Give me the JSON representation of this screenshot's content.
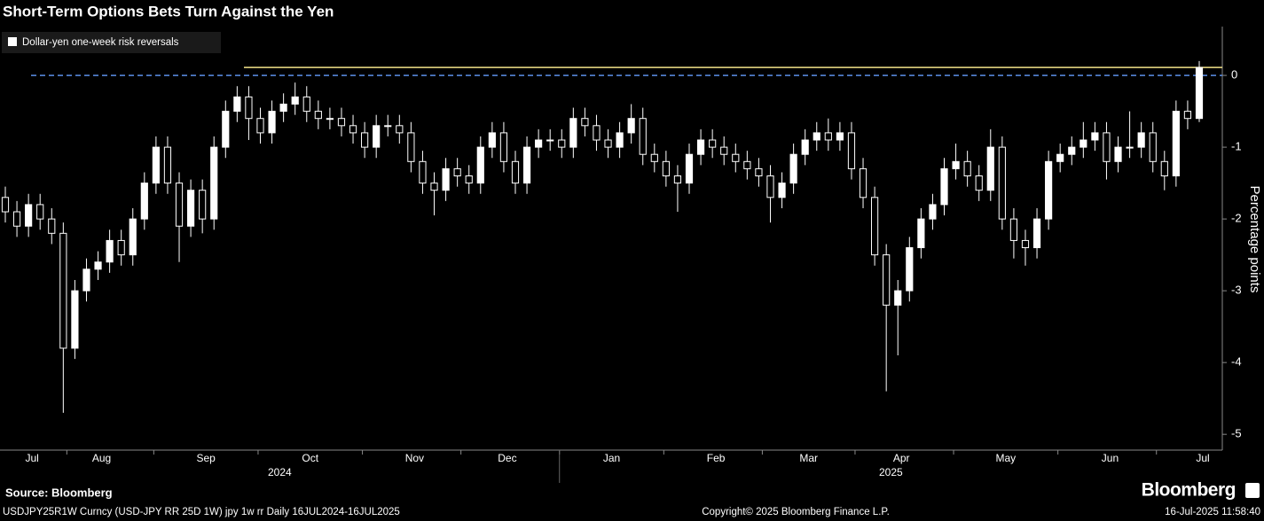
{
  "chart_data": {
    "type": "candlestick",
    "title": "Short-Term Options Bets Turn Against the Yen",
    "y_axis_label": "Percentage points",
    "ylim": [
      -5.22,
      0.68
    ],
    "yticks": [
      0,
      -1,
      -2,
      -3,
      -4,
      -5
    ],
    "categories": [
      null,
      null,
      "Jul",
      null,
      null,
      null,
      null,
      null,
      "Aug",
      null,
      null,
      null,
      null,
      null,
      null,
      null,
      null,
      "Sep",
      null,
      null,
      null,
      null,
      null,
      null,
      null,
      null,
      "Oct",
      null,
      null,
      null,
      null,
      null,
      null,
      null,
      null,
      "Nov",
      null,
      null,
      null,
      null,
      null,
      null,
      null,
      "Dec",
      null,
      null,
      null,
      null,
      null,
      null,
      null,
      null,
      "Jan",
      null,
      null,
      null,
      null,
      null,
      null,
      null,
      null,
      "Feb",
      null,
      null,
      null,
      null,
      null,
      null,
      null,
      "Mar",
      null,
      null,
      null,
      null,
      null,
      null,
      null,
      "Apr",
      null,
      null,
      null,
      null,
      null,
      null,
      null,
      null,
      "May",
      null,
      null,
      null,
      null,
      null,
      null,
      null,
      null,
      "Jun",
      null,
      null,
      null,
      null,
      null,
      null,
      null,
      "Jul"
    ],
    "years": [
      "2024",
      "2025"
    ],
    "series": [
      {
        "name": "Dollar-yen one-week risk reversals",
        "color": "#ffffff",
        "open": [
          -1.7,
          -1.9,
          -2.1,
          -1.8,
          -2.0,
          -2.2,
          -3.8,
          -3.0,
          -2.7,
          -2.6,
          -2.3,
          -2.5,
          -2.0,
          -1.5,
          -1.0,
          -1.5,
          -2.1,
          -1.6,
          -2.0,
          -1.0,
          -0.5,
          -0.3,
          -0.6,
          -0.8,
          -0.5,
          -0.4,
          -0.3,
          -0.5,
          -0.6,
          -0.6,
          -0.7,
          -0.8,
          -1.0,
          -0.7,
          -0.7,
          -0.8,
          -1.2,
          -1.5,
          -1.6,
          -1.3,
          -1.4,
          -1.5,
          -1.0,
          -0.8,
          -1.2,
          -1.5,
          -1.0,
          -0.9,
          -0.9,
          -1.0,
          -0.6,
          -0.7,
          -0.9,
          -1.0,
          -0.8,
          -0.6,
          -1.1,
          -1.2,
          -1.4,
          -1.5,
          -1.1,
          -0.9,
          -1.0,
          -1.1,
          -1.2,
          -1.3,
          -1.4,
          -1.7,
          -1.5,
          -1.1,
          -0.9,
          -0.8,
          -0.9,
          -0.8,
          -1.3,
          -1.7,
          -2.5,
          -3.2,
          -3.0,
          -2.4,
          -2.0,
          -1.8,
          -1.3,
          -1.2,
          -1.4,
          -1.6,
          -1.0,
          -2.0,
          -2.3,
          -2.4,
          -2.0,
          -1.2,
          -1.1,
          -1.0,
          -0.9,
          -0.8,
          -1.2,
          -1.0,
          -1.0,
          -0.8,
          -1.2,
          -1.4,
          -0.5,
          -0.6
        ],
        "high": [
          -1.55,
          -1.75,
          -1.65,
          -1.65,
          -1.85,
          -2.05,
          -2.85,
          -2.55,
          -2.45,
          -2.15,
          -2.15,
          -1.85,
          -1.35,
          -0.85,
          -0.85,
          -1.35,
          -1.45,
          -1.45,
          -0.85,
          -0.35,
          -0.15,
          -0.15,
          -0.45,
          -0.35,
          -0.25,
          -0.1,
          -0.15,
          -0.35,
          -0.45,
          -0.45,
          -0.55,
          -0.65,
          -0.55,
          -0.55,
          -0.55,
          -0.65,
          -1.05,
          -1.35,
          -1.15,
          -1.15,
          -1.25,
          -0.85,
          -0.65,
          -0.65,
          -1.05,
          -0.85,
          -0.75,
          -0.75,
          -0.75,
          -0.45,
          -0.45,
          -0.55,
          -0.75,
          -0.65,
          -0.4,
          -0.45,
          -0.95,
          -1.05,
          -1.25,
          -0.95,
          -0.75,
          -0.75,
          -0.85,
          -0.95,
          -1.05,
          -1.15,
          -1.25,
          -1.35,
          -0.95,
          -0.75,
          -0.65,
          -0.6,
          -0.65,
          -0.65,
          -1.15,
          -1.55,
          -2.35,
          -2.85,
          -2.25,
          -1.85,
          -1.65,
          -1.15,
          -0.95,
          -1.05,
          -1.25,
          -0.75,
          -0.85,
          -1.85,
          -2.15,
          -1.85,
          -1.05,
          -0.95,
          -0.85,
          -0.65,
          -0.65,
          -0.65,
          -0.85,
          -0.5,
          -0.65,
          -0.65,
          -1.05,
          -0.35,
          -0.35,
          0.2
        ],
        "low": [
          -2.05,
          -2.25,
          -2.25,
          -2.15,
          -2.35,
          -4.7,
          -3.95,
          -3.15,
          -2.85,
          -2.75,
          -2.65,
          -2.65,
          -2.15,
          -1.65,
          -1.65,
          -2.6,
          -2.25,
          -2.2,
          -2.15,
          -1.15,
          -0.65,
          -0.9,
          -0.95,
          -0.95,
          -0.65,
          -0.55,
          -0.65,
          -0.75,
          -0.75,
          -0.85,
          -0.95,
          -1.15,
          -1.15,
          -0.85,
          -0.95,
          -1.35,
          -1.65,
          -1.95,
          -1.75,
          -1.55,
          -1.65,
          -1.65,
          -1.15,
          -1.35,
          -1.65,
          -1.65,
          -1.15,
          -1.05,
          -1.15,
          -1.15,
          -0.85,
          -1.05,
          -1.15,
          -1.15,
          -0.95,
          -1.25,
          -1.35,
          -1.55,
          -1.9,
          -1.65,
          -1.25,
          -1.15,
          -1.25,
          -1.35,
          -1.45,
          -1.55,
          -2.05,
          -1.85,
          -1.65,
          -1.25,
          -1.05,
          -1.05,
          -1.05,
          -1.45,
          -1.85,
          -2.65,
          -4.4,
          -3.9,
          -3.15,
          -2.55,
          -2.15,
          -1.95,
          -1.45,
          -1.55,
          -1.75,
          -1.75,
          -2.15,
          -2.55,
          -2.65,
          -2.55,
          -2.15,
          -1.35,
          -1.25,
          -1.15,
          -1.05,
          -1.45,
          -1.35,
          -1.15,
          -1.15,
          -1.35,
          -1.6,
          -1.55,
          -0.75,
          -0.65
        ],
        "close": [
          -1.9,
          -2.1,
          -1.8,
          -2.0,
          -2.2,
          -3.8,
          -3.0,
          -2.7,
          -2.6,
          -2.3,
          -2.5,
          -2.0,
          -1.5,
          -1.0,
          -1.5,
          -2.1,
          -1.6,
          -2.0,
          -1.0,
          -0.5,
          -0.3,
          -0.6,
          -0.8,
          -0.5,
          -0.4,
          -0.3,
          -0.5,
          -0.6,
          -0.6,
          -0.7,
          -0.8,
          -1.0,
          -0.7,
          -0.7,
          -0.8,
          -1.2,
          -1.5,
          -1.6,
          -1.3,
          -1.4,
          -1.5,
          -1.0,
          -0.8,
          -1.2,
          -1.5,
          -1.0,
          -0.9,
          -0.9,
          -1.0,
          -0.6,
          -0.7,
          -0.9,
          -1.0,
          -0.8,
          -0.6,
          -1.1,
          -1.2,
          -1.4,
          -1.5,
          -1.1,
          -0.9,
          -1.0,
          -1.1,
          -1.2,
          -1.3,
          -1.4,
          -1.7,
          -1.5,
          -1.1,
          -0.9,
          -0.8,
          -0.9,
          -0.8,
          -1.3,
          -1.7,
          -2.5,
          -3.2,
          -3.0,
          -2.4,
          -2.0,
          -1.8,
          -1.3,
          -1.2,
          -1.4,
          -1.6,
          -1.0,
          -2.0,
          -2.3,
          -2.4,
          -2.0,
          -1.2,
          -1.1,
          -1.0,
          -0.9,
          -0.8,
          -1.2,
          -1.0,
          -1.0,
          -0.8,
          -1.2,
          -1.4,
          -0.5,
          -0.6,
          0.11
        ]
      }
    ],
    "reference_lines": [
      {
        "value": 0,
        "color": "#5b8fe8",
        "style": "dashed"
      },
      {
        "value": 0.11,
        "color": "#f3e38a",
        "style": "solid"
      }
    ],
    "source": "Source: Bloomberg",
    "brand": "Bloomberg",
    "footer": [
      "USDJPY25R1W Curncy (USD-JPY RR 25D 1W) jpy 1w rr  Daily 16JUL2024-16JUL2025",
      "Copyright© 2025 Bloomberg Finance L.P.",
      "16-Jul-2025 11:58:40"
    ]
  }
}
